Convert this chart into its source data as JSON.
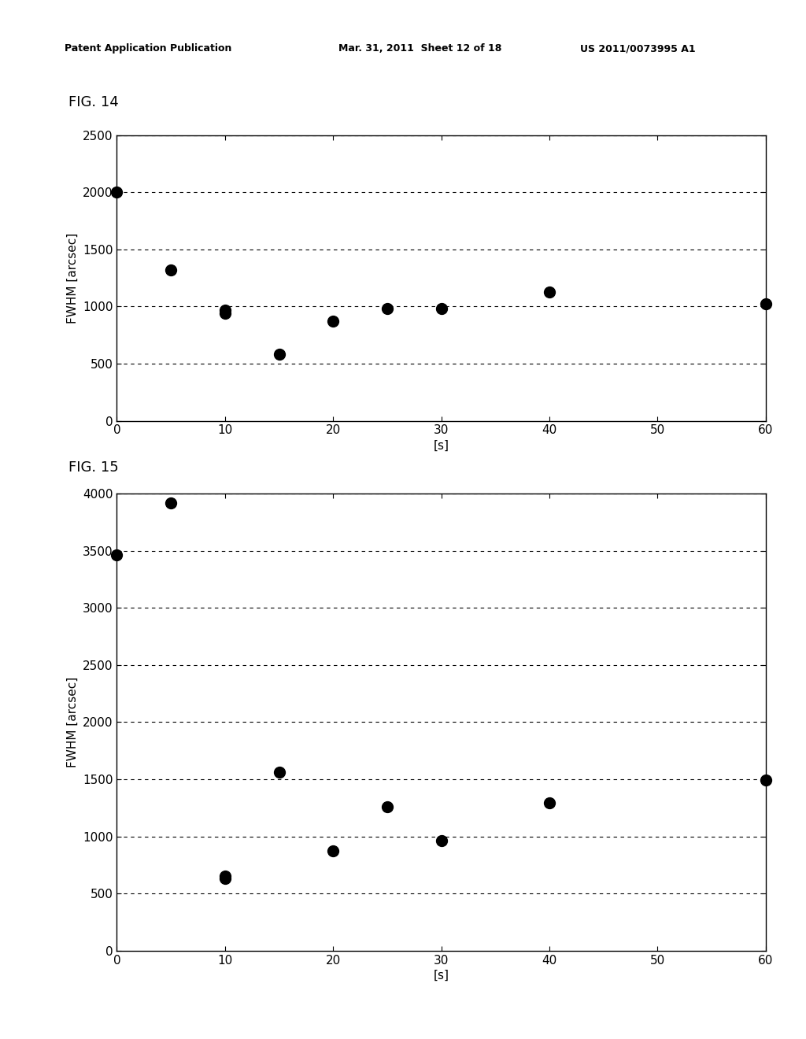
{
  "fig14_label": "FIG. 14",
  "fig15_label": "FIG. 15",
  "fig14_x": [
    0,
    5,
    10,
    10,
    15,
    20,
    25,
    30,
    40,
    60
  ],
  "fig14_y": [
    2000,
    1320,
    940,
    970,
    580,
    870,
    980,
    980,
    1130,
    1020
  ],
  "fig15_x": [
    0,
    5,
    10,
    10,
    15,
    20,
    25,
    30,
    40,
    60
  ],
  "fig15_y": [
    3460,
    3920,
    630,
    650,
    1560,
    870,
    1260,
    960,
    1290,
    1490
  ],
  "xlabel": "[s]",
  "ylabel": "FWHM [arcsec]",
  "fig14_ylim": [
    0,
    2500
  ],
  "fig14_yticks": [
    0,
    500,
    1000,
    1500,
    2000,
    2500
  ],
  "fig14_xlim": [
    0,
    60
  ],
  "fig14_xticks": [
    0,
    10,
    20,
    30,
    40,
    50,
    60
  ],
  "fig15_ylim": [
    0,
    4000
  ],
  "fig15_yticks": [
    0,
    500,
    1000,
    1500,
    2000,
    2500,
    3000,
    3500,
    4000
  ],
  "fig15_xlim": [
    0,
    60
  ],
  "fig15_xticks": [
    0,
    10,
    20,
    30,
    40,
    50,
    60
  ],
  "marker_color": "#000000",
  "marker_size": 10,
  "grid_color": "#000000",
  "background_color": "#ffffff",
  "header_left": "Patent Application Publication",
  "header_mid": "Mar. 31, 2011  Sheet 12 of 18",
  "header_right": "US 2011/0073995 A1",
  "header_fontsize": 9,
  "fig_label_fontsize": 13,
  "axis_fontsize": 11,
  "ylabel_fontsize": 11
}
